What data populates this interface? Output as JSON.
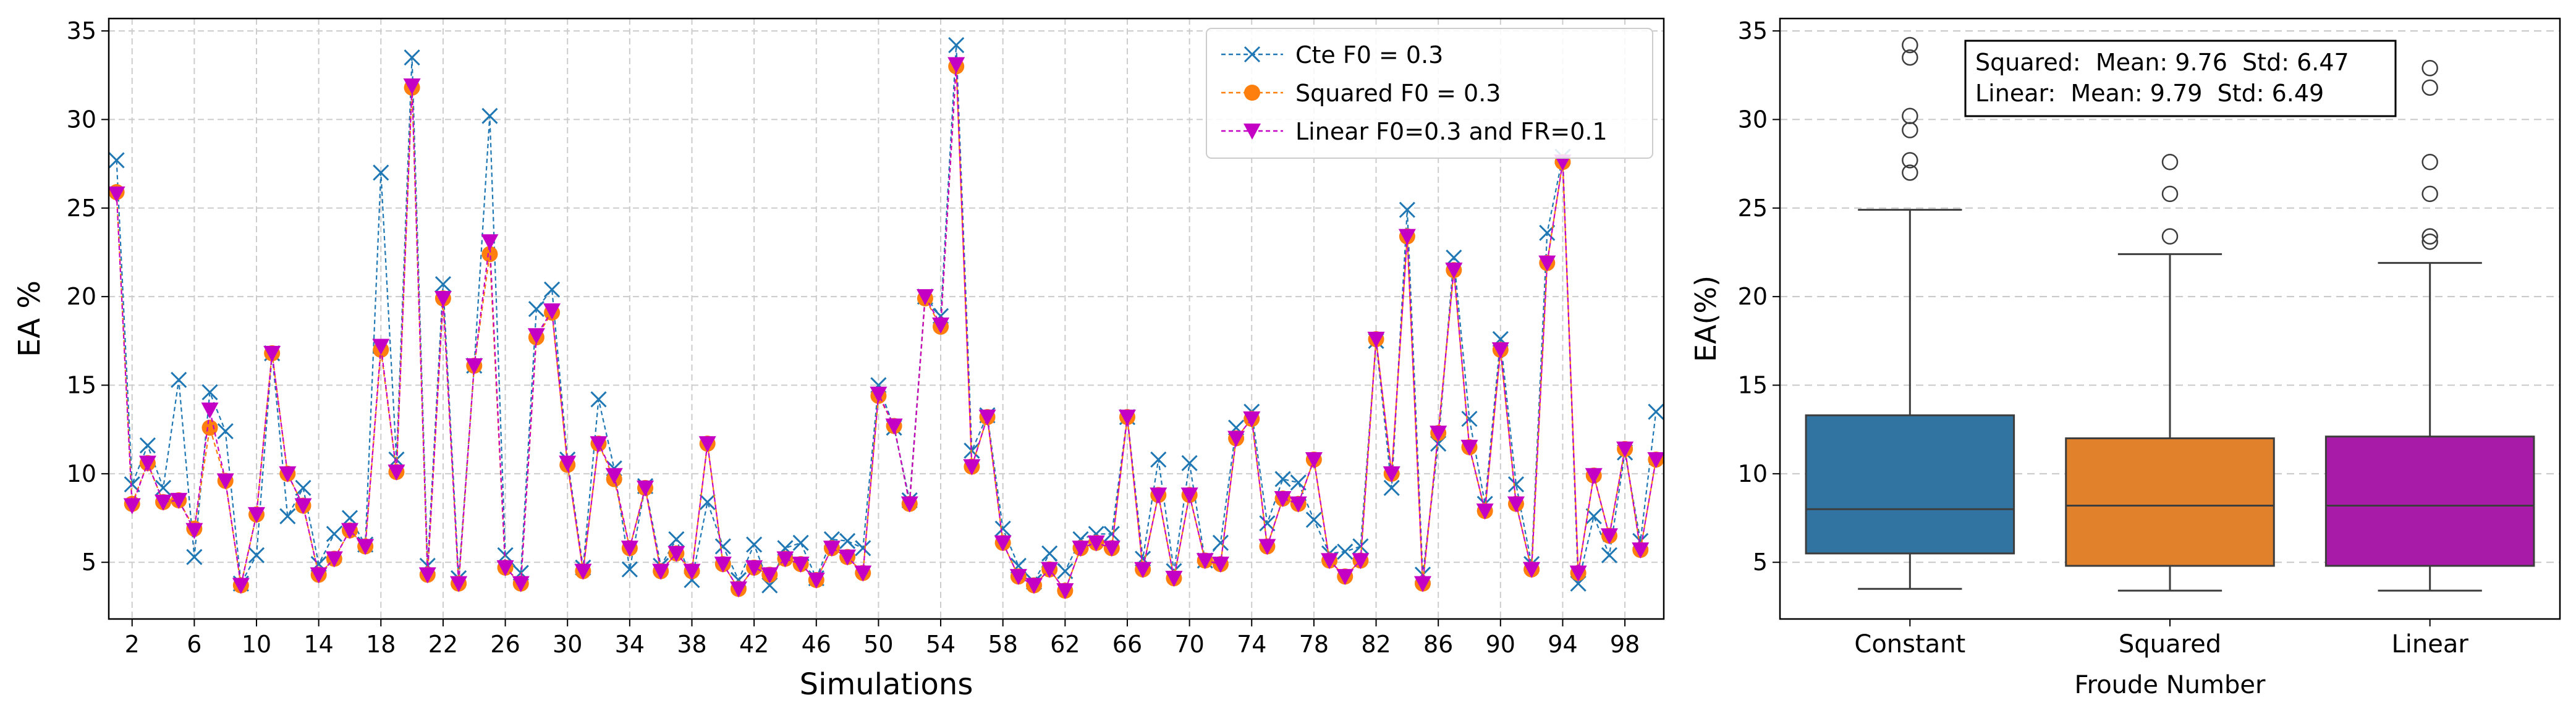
{
  "chart_data": [
    {
      "type": "line",
      "xlabel": "Simulations",
      "ylabel": "EA %",
      "xlim": [
        0.5,
        100.5
      ],
      "ylim": [
        1.8,
        35.7
      ],
      "grid": true,
      "legend_position": "top-right",
      "x_ticks": [
        2,
        6,
        10,
        14,
        18,
        22,
        26,
        30,
        34,
        38,
        42,
        46,
        50,
        54,
        58,
        62,
        66,
        70,
        74,
        78,
        82,
        86,
        90,
        94,
        98
      ],
      "y_ticks": [
        5,
        10,
        15,
        20,
        25,
        30,
        35
      ],
      "series": [
        {
          "name": "Cte F0 = 0.3",
          "color": "#1f77b4",
          "marker": "x",
          "values": [
            27.7,
            9.4,
            11.6,
            9.2,
            15.3,
            5.3,
            14.6,
            12.4,
            3.8,
            5.4,
            16.8,
            7.6,
            9.2,
            4.9,
            6.6,
            7.5,
            6.0,
            27.0,
            10.8,
            33.5,
            4.8,
            20.7,
            4.1,
            16.1,
            30.2,
            5.4,
            4.4,
            19.3,
            20.4,
            10.8,
            4.7,
            14.2,
            10.3,
            4.6,
            9.3,
            4.8,
            6.3,
            4.0,
            8.4,
            5.9,
            4.0,
            6.0,
            3.7,
            5.8,
            6.1,
            4.1,
            6.3,
            6.2,
            5.8,
            15.0,
            12.6,
            8.5,
            20.0,
            18.9,
            34.2,
            11.3,
            13.3,
            6.9,
            4.8,
            3.9,
            5.5,
            4.5,
            6.3,
            6.6,
            6.6,
            13.2,
            5.2,
            10.8,
            4.5,
            10.6,
            5.1,
            6.1,
            12.6,
            13.5,
            7.2,
            9.7,
            9.5,
            7.4,
            5.5,
            5.6,
            5.9,
            17.5,
            9.2,
            24.9,
            4.3,
            11.7,
            22.2,
            13.1,
            8.3,
            17.6,
            9.4,
            4.9,
            23.6,
            27.9,
            3.8,
            7.6,
            5.4,
            11.2,
            6.2,
            13.5
          ]
        },
        {
          "name": "Squared F0 = 0.3",
          "color": "#ff7f0e",
          "marker": "o",
          "values": [
            25.9,
            8.3,
            10.6,
            8.4,
            8.5,
            6.9,
            12.6,
            9.6,
            3.7,
            7.7,
            16.8,
            10.0,
            8.2,
            4.3,
            5.2,
            6.8,
            5.9,
            17.0,
            10.1,
            31.8,
            4.3,
            19.9,
            3.8,
            16.1,
            22.4,
            4.7,
            3.8,
            17.7,
            19.1,
            10.5,
            4.5,
            11.7,
            9.7,
            5.8,
            9.2,
            4.5,
            5.5,
            4.5,
            11.7,
            4.9,
            3.5,
            4.7,
            4.3,
            5.2,
            4.9,
            4.0,
            5.8,
            5.3,
            4.4,
            14.4,
            12.7,
            8.3,
            19.9,
            18.3,
            33.0,
            10.4,
            13.2,
            6.1,
            4.2,
            3.7,
            4.6,
            3.4,
            5.8,
            6.1,
            5.8,
            13.2,
            4.6,
            8.8,
            4.1,
            8.8,
            5.1,
            4.9,
            12.0,
            13.1,
            5.9,
            8.6,
            8.3,
            10.8,
            5.1,
            4.2,
            5.1,
            17.6,
            10.0,
            23.4,
            3.8,
            12.3,
            21.5,
            11.5,
            7.9,
            17.0,
            8.3,
            4.6,
            21.9,
            27.6,
            4.4,
            9.9,
            6.5,
            11.4,
            5.7,
            10.8
          ]
        },
        {
          "name": "Linear F0=0.3 and FR=0.1",
          "color": "#c400c4",
          "marker": "v",
          "values": [
            25.8,
            8.2,
            10.6,
            8.4,
            8.5,
            6.8,
            13.6,
            9.6,
            3.7,
            7.7,
            16.8,
            10.0,
            8.2,
            4.3,
            5.2,
            6.8,
            5.9,
            17.2,
            10.1,
            31.9,
            4.3,
            19.9,
            3.8,
            16.1,
            23.1,
            4.7,
            3.8,
            17.8,
            19.2,
            10.6,
            4.5,
            11.7,
            9.9,
            5.8,
            9.2,
            4.5,
            5.5,
            4.5,
            11.7,
            4.9,
            3.5,
            4.7,
            4.3,
            5.2,
            4.9,
            4.0,
            5.8,
            5.3,
            4.4,
            14.5,
            12.7,
            8.3,
            20.0,
            18.4,
            33.1,
            10.4,
            13.2,
            6.1,
            4.2,
            3.7,
            4.6,
            3.4,
            5.8,
            6.1,
            5.8,
            13.2,
            4.6,
            8.8,
            4.1,
            8.8,
            5.1,
            4.9,
            12.0,
            13.1,
            5.9,
            8.6,
            8.3,
            10.8,
            5.1,
            4.2,
            5.1,
            17.6,
            10.0,
            23.4,
            3.8,
            12.3,
            21.5,
            11.5,
            7.9,
            17.0,
            8.3,
            4.6,
            21.9,
            27.6,
            4.4,
            9.9,
            6.5,
            11.4,
            5.7,
            10.8
          ]
        }
      ]
    },
    {
      "type": "box",
      "xlabel": "Froude Number",
      "ylabel": "EA(%)",
      "ylim": [
        1.8,
        35.7
      ],
      "grid": true,
      "y_ticks": [
        5,
        10,
        15,
        20,
        25,
        30,
        35
      ],
      "annotation": {
        "line1": "Squared:  Mean: 9.76  Std: 6.47",
        "line2": "Linear:  Mean: 9.79  Std: 6.49"
      },
      "boxes": [
        {
          "category": "Constant",
          "color": "#3274a1",
          "whisker_low": 3.5,
          "q1": 5.5,
          "median": 8.0,
          "q3": 13.3,
          "whisker_high": 24.9,
          "outliers": [
            27.0,
            27.7,
            29.4,
            30.2,
            33.5,
            34.2
          ]
        },
        {
          "category": "Squared",
          "color": "#e1812c",
          "whisker_low": 3.4,
          "q1": 4.8,
          "median": 8.2,
          "q3": 12.0,
          "whisker_high": 22.4,
          "outliers": [
            23.4,
            25.8,
            27.6
          ]
        },
        {
          "category": "Linear",
          "color": "#a81aa8",
          "whisker_low": 3.4,
          "q1": 4.8,
          "median": 8.2,
          "q3": 12.1,
          "whisker_high": 21.9,
          "outliers": [
            23.1,
            23.4,
            25.8,
            27.6,
            31.8,
            32.9
          ]
        }
      ]
    }
  ]
}
